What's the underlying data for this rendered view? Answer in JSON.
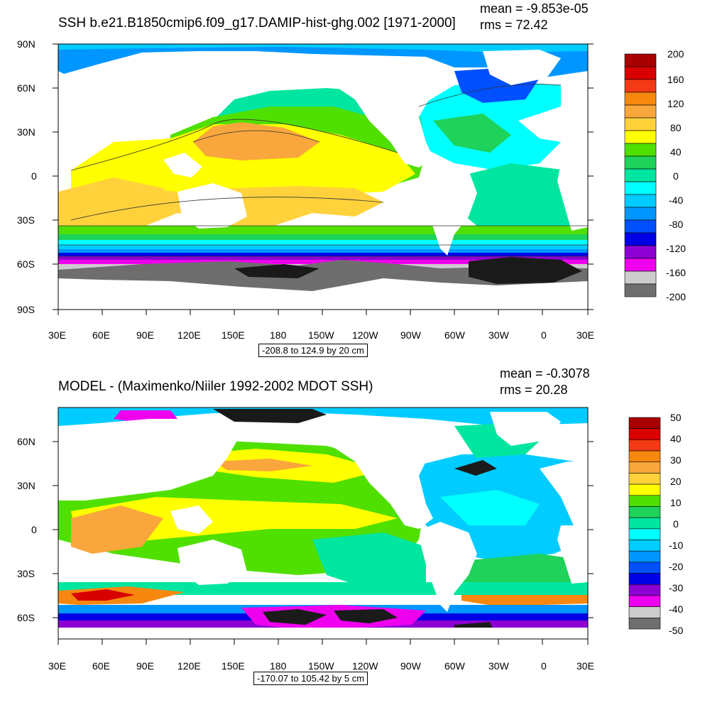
{
  "panels": [
    {
      "title": "SSH b.e21.B1850cmip6.f09_g17.DAMIP-hist-ghg.002 [1971-2000]",
      "mean": "mean = -9.853e-05",
      "rms": "rms = 72.42",
      "lat_labels": [
        "90N",
        "60N",
        "30N",
        "0",
        "30S",
        "60S",
        "90S"
      ],
      "lon_labels": [
        "30E",
        "60E",
        "90E",
        "120E",
        "150E",
        "180",
        "150W",
        "120W",
        "90W",
        "60W",
        "30W",
        "0",
        "30E"
      ],
      "range_label": "-208.8 to 124.9 by 20 cm",
      "colorbar_labels": [
        "200",
        "160",
        "120",
        "80",
        "40",
        "0",
        "-40",
        "-80",
        "-120",
        "-160",
        "-200"
      ],
      "colorbar_colors": [
        "#a80000",
        "#d80000",
        "#f43a14",
        "#f7880f",
        "#f9a63c",
        "#ffd23c",
        "#ffff00",
        "#50e000",
        "#1ed25a",
        "#00e6a0",
        "#00ffff",
        "#00ccff",
        "#0096ff",
        "#0050ff",
        "#0000e6",
        "#8c00d2",
        "#ee00ee",
        "#cccccc",
        "#6e6e6e"
      ]
    },
    {
      "title": "MODEL - (Maximenko/Niiler 1992-2002 MDOT SSH)",
      "mean": "mean = -0.3078",
      "rms": "rms = 20.28",
      "lat_labels": [
        "60N",
        "30N",
        "0",
        "30S",
        "60S"
      ],
      "lon_labels": [
        "30E",
        "60E",
        "90E",
        "120E",
        "150E",
        "180",
        "150W",
        "120W",
        "90W",
        "60W",
        "30W",
        "0",
        "30E"
      ],
      "range_label": "-170.07 to 105.42 by 5 cm",
      "colorbar_labels": [
        "50",
        "40",
        "30",
        "20",
        "10",
        "0",
        "-10",
        "-20",
        "-30",
        "-40",
        "-50"
      ],
      "colorbar_colors": [
        "#a80000",
        "#d80000",
        "#f43a14",
        "#f7880f",
        "#f9a63c",
        "#ffd23c",
        "#ffff00",
        "#50e000",
        "#1ed25a",
        "#00e6a0",
        "#00ffff",
        "#00ccff",
        "#0096ff",
        "#0050ff",
        "#0000e6",
        "#8c00d2",
        "#ee00ee",
        "#cccccc",
        "#6e6e6e"
      ]
    }
  ]
}
